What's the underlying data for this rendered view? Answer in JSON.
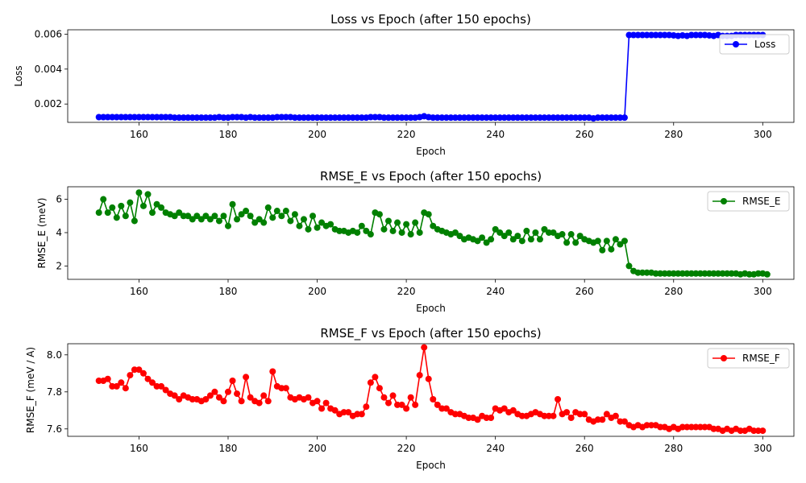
{
  "chart_data": [
    {
      "type": "line",
      "title": "Loss vs Epoch (after 150 epochs)",
      "xlabel": "Epoch",
      "ylabel": "Loss",
      "xlim": [
        144,
        307
      ],
      "ylim": [
        0.00095,
        0.00625
      ],
      "xticks": [
        160,
        180,
        200,
        220,
        240,
        260,
        280,
        300
      ],
      "yticks": [
        0.002,
        0.004,
        0.006
      ],
      "ytick_labels": [
        "0.002",
        "0.004",
        "0.006"
      ],
      "legend": "top-right",
      "grid": false,
      "series": [
        {
          "name": "Loss",
          "color": "#0000ff",
          "x_start": 151,
          "values": [
            0.00125,
            0.00125,
            0.00125,
            0.00125,
            0.00125,
            0.00125,
            0.00125,
            0.00125,
            0.00125,
            0.00125,
            0.00125,
            0.00125,
            0.00125,
            0.00125,
            0.00125,
            0.00125,
            0.00125,
            0.00122,
            0.00122,
            0.00122,
            0.00122,
            0.00122,
            0.00122,
            0.00122,
            0.00122,
            0.00122,
            0.00122,
            0.00125,
            0.00122,
            0.00122,
            0.00125,
            0.00125,
            0.00125,
            0.00122,
            0.00125,
            0.00122,
            0.00122,
            0.00122,
            0.00122,
            0.00122,
            0.00125,
            0.00125,
            0.00125,
            0.00125,
            0.00122,
            0.00122,
            0.00122,
            0.00122,
            0.00122,
            0.00122,
            0.00122,
            0.00122,
            0.00122,
            0.00122,
            0.00122,
            0.00122,
            0.00122,
            0.00122,
            0.00122,
            0.00122,
            0.00122,
            0.00125,
            0.00125,
            0.00125,
            0.00122,
            0.00122,
            0.00122,
            0.00122,
            0.00122,
            0.00122,
            0.00122,
            0.00122,
            0.00125,
            0.0013,
            0.00125,
            0.00122,
            0.00122,
            0.00122,
            0.00122,
            0.00122,
            0.00122,
            0.00122,
            0.00122,
            0.00122,
            0.00122,
            0.00122,
            0.00122,
            0.00122,
            0.00122,
            0.00122,
            0.00122,
            0.00122,
            0.00122,
            0.00122,
            0.00122,
            0.00122,
            0.00122,
            0.00122,
            0.00122,
            0.00122,
            0.00122,
            0.00122,
            0.00122,
            0.00122,
            0.00122,
            0.00122,
            0.00122,
            0.00122,
            0.00122,
            0.00122,
            0.00122,
            0.00118,
            0.00122,
            0.00122,
            0.00122,
            0.00122,
            0.00122,
            0.00122,
            0.00122,
            0.00595,
            0.00595,
            0.00595,
            0.00595,
            0.00595,
            0.00595,
            0.00595,
            0.00595,
            0.00595,
            0.00595,
            0.00593,
            0.0059,
            0.00593,
            0.0059,
            0.00595,
            0.00595,
            0.00595,
            0.00595,
            0.00593,
            0.0059,
            0.00595,
            0.0059,
            0.0059,
            0.0059,
            0.00595,
            0.00595,
            0.00595,
            0.00595,
            0.00595,
            0.00595,
            0.00595
          ]
        }
      ]
    },
    {
      "type": "line",
      "title": "RMSE_E vs Epoch (after 150 epochs)",
      "xlabel": "Epoch",
      "ylabel": "RMSE_E (meV)",
      "xlim": [
        144,
        307
      ],
      "ylim": [
        1.2,
        6.75
      ],
      "xticks": [
        160,
        180,
        200,
        220,
        240,
        260,
        280,
        300
      ],
      "yticks": [
        2,
        4,
        6
      ],
      "ytick_labels": [
        "2",
        "4",
        "6"
      ],
      "legend": "top-right",
      "grid": false,
      "series": [
        {
          "name": "RMSE_E",
          "color": "#008000",
          "x_start": 151,
          "values": [
            5.2,
            6.0,
            5.2,
            5.5,
            4.9,
            5.6,
            5.0,
            5.8,
            4.7,
            6.4,
            5.6,
            6.3,
            5.2,
            5.7,
            5.5,
            5.2,
            5.1,
            5.0,
            5.2,
            5.0,
            5.0,
            4.8,
            5.0,
            4.8,
            5.0,
            4.8,
            5.0,
            4.7,
            5.0,
            4.4,
            5.7,
            4.8,
            5.1,
            5.3,
            5.0,
            4.6,
            4.8,
            4.6,
            5.5,
            4.9,
            5.3,
            5.0,
            5.3,
            4.7,
            5.1,
            4.4,
            4.8,
            4.2,
            5.0,
            4.3,
            4.6,
            4.4,
            4.5,
            4.2,
            4.1,
            4.1,
            4.0,
            4.1,
            4.0,
            4.4,
            4.1,
            3.9,
            5.2,
            5.1,
            4.2,
            4.7,
            4.1,
            4.6,
            4.0,
            4.5,
            3.9,
            4.6,
            4.0,
            5.2,
            5.1,
            4.4,
            4.2,
            4.1,
            4.0,
            3.9,
            4.0,
            3.8,
            3.6,
            3.7,
            3.6,
            3.5,
            3.7,
            3.4,
            3.6,
            4.2,
            4.0,
            3.8,
            4.0,
            3.6,
            3.8,
            3.5,
            4.1,
            3.6,
            4.0,
            3.6,
            4.2,
            4.0,
            4.0,
            3.8,
            3.9,
            3.4,
            3.9,
            3.4,
            3.8,
            3.6,
            3.5,
            3.4,
            3.5,
            2.95,
            3.5,
            3.0,
            3.6,
            3.3,
            3.5,
            2.0,
            1.7,
            1.6,
            1.6,
            1.6,
            1.6,
            1.55,
            1.55,
            1.55,
            1.55,
            1.55,
            1.55,
            1.55,
            1.55,
            1.55,
            1.55,
            1.55,
            1.55,
            1.55,
            1.55,
            1.55,
            1.55,
            1.55,
            1.55,
            1.55,
            1.5,
            1.55,
            1.5,
            1.5,
            1.55,
            1.55,
            1.5
          ]
        }
      ]
    },
    {
      "type": "line",
      "title": "RMSE_F vs Epoch (after 150 epochs)",
      "xlabel": "Epoch",
      "ylabel": "RMSE_F (meV / A)",
      "xlim": [
        144,
        307
      ],
      "ylim": [
        7.56,
        8.06
      ],
      "xticks": [
        160,
        180,
        200,
        220,
        240,
        260,
        280,
        300
      ],
      "yticks": [
        7.6,
        7.8,
        8.0
      ],
      "ytick_labels": [
        "7.6",
        "7.8",
        "8.0"
      ],
      "legend": "top-right",
      "grid": false,
      "series": [
        {
          "name": "RMSE_F",
          "color": "#ff0000",
          "x_start": 151,
          "values": [
            7.86,
            7.86,
            7.87,
            7.83,
            7.83,
            7.85,
            7.82,
            7.89,
            7.92,
            7.92,
            7.9,
            7.87,
            7.85,
            7.83,
            7.83,
            7.81,
            7.79,
            7.78,
            7.76,
            7.78,
            7.77,
            7.76,
            7.76,
            7.75,
            7.76,
            7.78,
            7.8,
            7.77,
            7.75,
            7.8,
            7.86,
            7.79,
            7.75,
            7.88,
            7.77,
            7.75,
            7.74,
            7.78,
            7.75,
            7.91,
            7.83,
            7.82,
            7.82,
            7.77,
            7.76,
            7.77,
            7.76,
            7.77,
            7.74,
            7.75,
            7.71,
            7.74,
            7.71,
            7.7,
            7.68,
            7.69,
            7.69,
            7.67,
            7.68,
            7.68,
            7.72,
            7.85,
            7.88,
            7.82,
            7.77,
            7.74,
            7.78,
            7.73,
            7.73,
            7.71,
            7.77,
            7.73,
            7.89,
            8.04,
            7.87,
            7.76,
            7.73,
            7.71,
            7.71,
            7.69,
            7.68,
            7.68,
            7.67,
            7.66,
            7.66,
            7.65,
            7.67,
            7.66,
            7.66,
            7.71,
            7.7,
            7.71,
            7.69,
            7.7,
            7.68,
            7.67,
            7.67,
            7.68,
            7.69,
            7.68,
            7.67,
            7.67,
            7.67,
            7.76,
            7.68,
            7.69,
            7.66,
            7.69,
            7.68,
            7.68,
            7.65,
            7.64,
            7.65,
            7.65,
            7.68,
            7.66,
            7.67,
            7.64,
            7.64,
            7.62,
            7.61,
            7.62,
            7.61,
            7.62,
            7.62,
            7.62,
            7.61,
            7.61,
            7.6,
            7.61,
            7.6,
            7.61,
            7.61,
            7.61,
            7.61,
            7.61,
            7.61,
            7.61,
            7.6,
            7.6,
            7.59,
            7.6,
            7.59,
            7.6,
            7.59,
            7.59,
            7.6,
            7.59,
            7.59,
            7.59
          ]
        }
      ]
    }
  ]
}
